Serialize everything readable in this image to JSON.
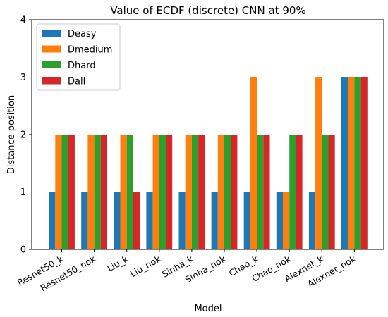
{
  "chart_data": {
    "type": "bar",
    "title": "Value of ECDF (discrete) CNN  at 90%",
    "xlabel": "Model",
    "ylabel": "Distance position",
    "ylim": [
      0,
      4
    ],
    "yticks": [
      0,
      1,
      2,
      3,
      4
    ],
    "grid": false,
    "legend_position": "top-left",
    "categories": [
      "Resnet50_k",
      "Resnet50_nok",
      "Liu_k",
      "Liu_nok",
      "Sinha_k",
      "Sinha_nok",
      "Chao_k",
      "Chao_nok",
      "Alexnet_k",
      "Alexnet_nok"
    ],
    "series": [
      {
        "name": "Deasy",
        "color": "#1f77b4",
        "values": [
          1,
          1,
          1,
          1,
          1,
          1,
          1,
          1,
          1,
          3
        ]
      },
      {
        "name": "Dmedium",
        "color": "#ff7f0e",
        "values": [
          2,
          2,
          2,
          2,
          2,
          2,
          3,
          1,
          3,
          3
        ]
      },
      {
        "name": "Dhard",
        "color": "#2ca02c",
        "values": [
          2,
          2,
          2,
          2,
          2,
          2,
          2,
          2,
          2,
          3
        ]
      },
      {
        "name": "Dall",
        "color": "#d62728",
        "values": [
          2,
          2,
          1,
          2,
          2,
          2,
          2,
          2,
          2,
          3
        ]
      }
    ]
  }
}
